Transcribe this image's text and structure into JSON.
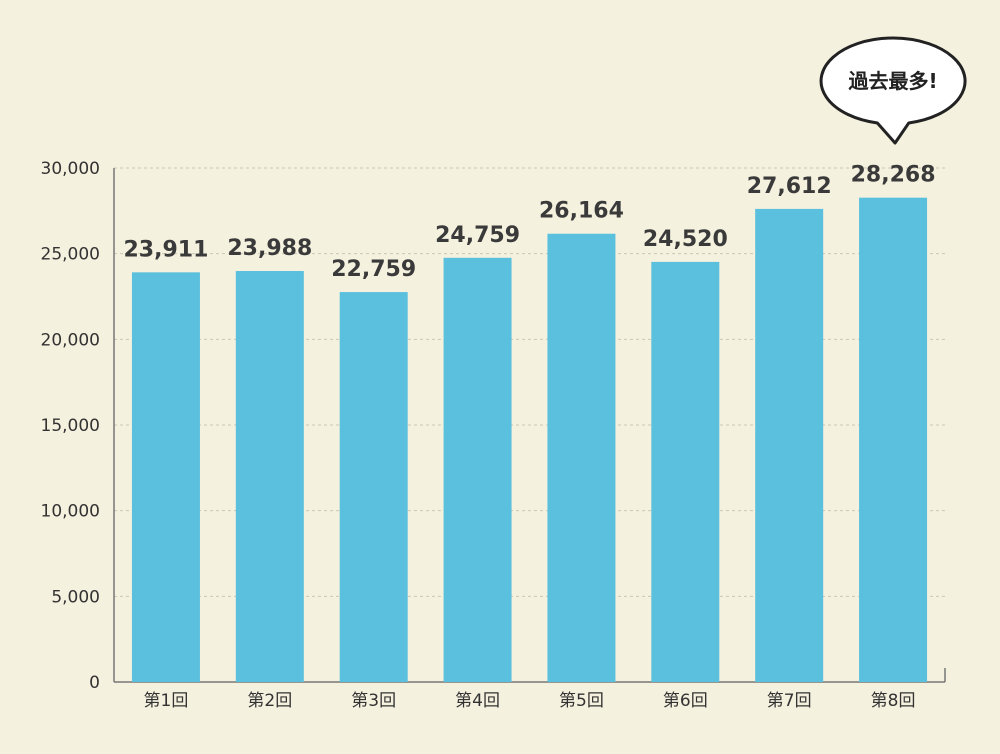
{
  "chart_data": {
    "type": "bar",
    "categories": [
      "第1回",
      "第2回",
      "第3回",
      "第4回",
      "第5回",
      "第6回",
      "第7回",
      "第8回"
    ],
    "values": [
      23911,
      23988,
      22759,
      24759,
      26164,
      24520,
      27612,
      28268
    ],
    "value_labels": [
      "23,911",
      "23,988",
      "22,759",
      "24,759",
      "26,164",
      "24,520",
      "27,612",
      "28,268"
    ],
    "y_ticks": [
      0,
      5000,
      10000,
      15000,
      20000,
      25000,
      30000
    ],
    "y_tick_labels": [
      "0",
      "5,000",
      "10,000",
      "15,000",
      "20,000",
      "25,000",
      "30,000"
    ],
    "ylim": [
      0,
      30000
    ],
    "grid": true,
    "bar_color": "#5bc0de",
    "background": "#f5f1df",
    "annotation": {
      "text": "過去最多!",
      "target_index": 7
    }
  }
}
